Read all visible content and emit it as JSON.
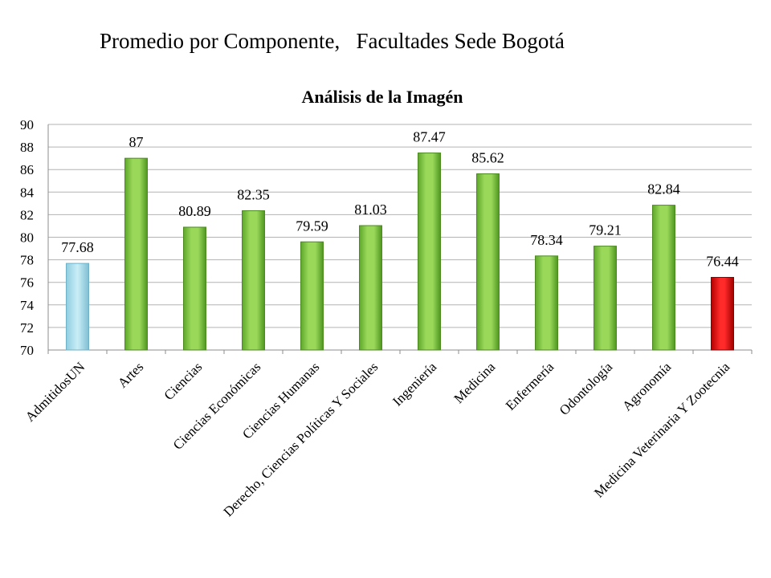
{
  "slide": {
    "title": "Promedio por Componente,   Facultades Sede Bogotá"
  },
  "colors": {
    "admitidos": "#a8dceb",
    "facultad": "#7fc93a",
    "lowest": "#e01010",
    "grid": "#b3b3b3"
  },
  "chart_data": {
    "type": "bar",
    "title": "Análisis de la Imagén",
    "xlabel": "",
    "ylabel": "",
    "ylim": [
      70,
      90
    ],
    "ytick_step": 2,
    "grid": true,
    "legend": "none",
    "categories": [
      "AdmitidosUN",
      "Artes",
      "Ciencias",
      "Ciencias Económicas",
      "Ciencias Humanas",
      "Derecho, Ciencias Políticas Y Sociales",
      "Ingeniería",
      "Medicina",
      "Enfermería",
      "Odontología",
      "Agronomía",
      "Medicina Veterinaria Y Zootecnia"
    ],
    "values": [
      77.68,
      87,
      80.89,
      82.35,
      79.59,
      81.03,
      87.47,
      85.62,
      78.34,
      79.21,
      82.84,
      76.44
    ],
    "value_labels": [
      "77.68",
      "87",
      "80.89",
      "82.35",
      "79.59",
      "81.03",
      "87.47",
      "85.62",
      "78.34",
      "79.21",
      "82.84",
      "76.44"
    ],
    "bar_color_keys": [
      "admitidos",
      "facultad",
      "facultad",
      "facultad",
      "facultad",
      "facultad",
      "facultad",
      "facultad",
      "facultad",
      "facultad",
      "facultad",
      "lowest"
    ]
  }
}
